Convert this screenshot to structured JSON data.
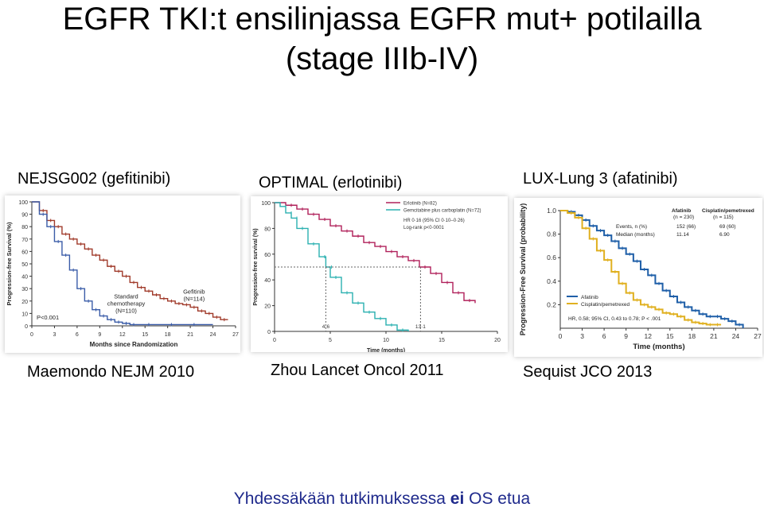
{
  "slide": {
    "title_line1": "EGFR TKI:t ensilinjassa EGFR mut+ potilailla",
    "title_line2": "(stage IIIb-IV)",
    "footer_before": "Yhdessäkään tutkimuksessa ",
    "footer_bold": "ei",
    "footer_after": " OS etua"
  },
  "studies": [
    {
      "name": "NEJSG002 (gefitinibi)",
      "citation": "Maemondo NEJM 2010"
    },
    {
      "name": "OPTIMAL (erlotinibi)",
      "citation": "Zhou Lancet Oncol 2011"
    },
    {
      "name": "LUX-Lung 3 (afatinibi)",
      "citation": "Sequist JCO 2013"
    }
  ],
  "chart_data": [
    {
      "type": "line",
      "ylabel": "Progression-free Survival (%)",
      "xlabel": "Months since Randomization",
      "xlim": [
        0,
        27
      ],
      "ylim": [
        0,
        100
      ],
      "xticks": [
        0,
        3,
        6,
        9,
        12,
        15,
        18,
        21,
        24,
        27
      ],
      "yticks": [
        0,
        10,
        20,
        30,
        40,
        50,
        60,
        70,
        80,
        90,
        100
      ],
      "annotation": "P<0.001",
      "series": [
        {
          "name": "Gefitinib (N=114)",
          "color": "#a03a2a",
          "x": [
            0,
            1,
            2,
            3,
            4,
            5,
            6,
            7,
            8,
            9,
            10,
            11,
            12,
            13,
            14,
            15,
            16,
            17,
            18,
            19,
            20,
            21,
            22,
            23,
            24,
            25,
            26
          ],
          "y": [
            100,
            93,
            85,
            80,
            74,
            70,
            66,
            62,
            57,
            53,
            48,
            44,
            40,
            35,
            31,
            28,
            25,
            22,
            20,
            18,
            17,
            15,
            12,
            10,
            7,
            5,
            5
          ]
        },
        {
          "name": "Standard chemotherapy (N=110)",
          "color": "#3a5ca8",
          "x": [
            0,
            1,
            2,
            3,
            4,
            5,
            6,
            7,
            8,
            9,
            10,
            11,
            12,
            13,
            15,
            18,
            21,
            24
          ],
          "y": [
            100,
            90,
            80,
            68,
            57,
            45,
            30,
            20,
            13,
            8,
            5,
            3,
            2,
            1,
            1,
            1,
            1,
            1
          ]
        }
      ],
      "series_labels": [
        {
          "line1": "Gefitinib",
          "line2": "(N=114)"
        },
        {
          "line1": "Standard",
          "line2": "chemotherapy",
          "line3": "(N=110)"
        }
      ]
    },
    {
      "type": "line",
      "ylabel": "Progression-free survival (%)",
      "xlabel": "Time (months)",
      "xlim": [
        0,
        20
      ],
      "ylim": [
        0,
        100
      ],
      "xticks": [
        0,
        5,
        10,
        15,
        20
      ],
      "yticks": [
        0,
        20,
        40,
        60,
        80,
        100
      ],
      "legend": [
        "Erlotinib (N=82)",
        "Gemcitabine plus carboplatin (N=72)"
      ],
      "stats": [
        "HR 0·16 (95% CI 0·10–0·26)",
        "Log-rank p<0·0001"
      ],
      "medians": [
        {
          "x": 4.6,
          "label": "4·6"
        },
        {
          "x": 13.1,
          "label": "13·1"
        }
      ],
      "median_y": 50,
      "series": [
        {
          "name": "Erlotinib (N=82)",
          "color": "#b0205a",
          "x": [
            0,
            1,
            2,
            3,
            4,
            5,
            6,
            7,
            8,
            9,
            10,
            11,
            12,
            13,
            14,
            15,
            16,
            17,
            18
          ],
          "y": [
            100,
            98,
            95,
            91,
            87,
            82,
            78,
            74,
            69,
            66,
            62,
            58,
            55,
            50,
            45,
            38,
            30,
            24,
            22
          ]
        },
        {
          "name": "Gemcitabine plus carboplatin (N=72)",
          "color": "#2ab0b0",
          "x": [
            0,
            0.5,
            1,
            1.5,
            2,
            3,
            4,
            4.6,
            5,
            6,
            7,
            8,
            9,
            10,
            11,
            12
          ],
          "y": [
            100,
            97,
            92,
            88,
            80,
            68,
            58,
            50,
            42,
            30,
            22,
            15,
            10,
            5,
            1,
            0
          ]
        }
      ]
    },
    {
      "type": "line",
      "ylabel": "Progression-Free Survival (probability)",
      "xlabel": "Time (months)",
      "xlim": [
        0,
        27
      ],
      "ylim": [
        0,
        1.0
      ],
      "xticks": [
        0,
        3,
        6,
        9,
        12,
        15,
        18,
        21,
        24,
        27
      ],
      "yticks": [
        0.2,
        0.4,
        0.6,
        0.8,
        1.0
      ],
      "table_headers": [
        "Afatinib",
        "Cisplatin/pemetrexed"
      ],
      "table_n": [
        "(n = 230)",
        "(n = 115)"
      ],
      "table_rows": [
        {
          "label": "Events, n (%)",
          "afatinib": "152 (66)",
          "cisplatin": "69 (60)"
        },
        {
          "label": "Median (months)",
          "afatinib": "11.14",
          "cisplatin": "6.90"
        }
      ],
      "stats": "HR, 0.58; 95% CI, 0.43 to 0.78; P < .001",
      "series": [
        {
          "name": "Afatinib",
          "color": "#1f5fa8",
          "x": [
            0,
            1,
            2,
            3,
            4,
            5,
            6,
            7,
            8,
            9,
            10,
            11,
            12,
            13,
            14,
            15,
            16,
            17,
            18,
            19,
            20,
            21,
            22,
            23,
            24,
            25
          ],
          "y": [
            1.0,
            0.99,
            0.96,
            0.92,
            0.87,
            0.83,
            0.79,
            0.74,
            0.68,
            0.63,
            0.57,
            0.5,
            0.45,
            0.38,
            0.32,
            0.27,
            0.22,
            0.18,
            0.15,
            0.12,
            0.1,
            0.1,
            0.08,
            0.06,
            0.03,
            0.0
          ]
        },
        {
          "name": "Cisplatin/pemetrexed",
          "color": "#e0b020",
          "x": [
            0,
            1,
            2,
            3,
            4,
            5,
            6,
            7,
            8,
            9,
            10,
            11,
            12,
            13,
            14,
            15,
            16,
            17,
            18,
            19,
            20,
            21,
            22
          ],
          "y": [
            1.0,
            0.98,
            0.94,
            0.85,
            0.76,
            0.66,
            0.58,
            0.48,
            0.38,
            0.3,
            0.24,
            0.2,
            0.18,
            0.16,
            0.13,
            0.12,
            0.1,
            0.07,
            0.05,
            0.04,
            0.03,
            0.03,
            0.03
          ]
        }
      ]
    }
  ]
}
